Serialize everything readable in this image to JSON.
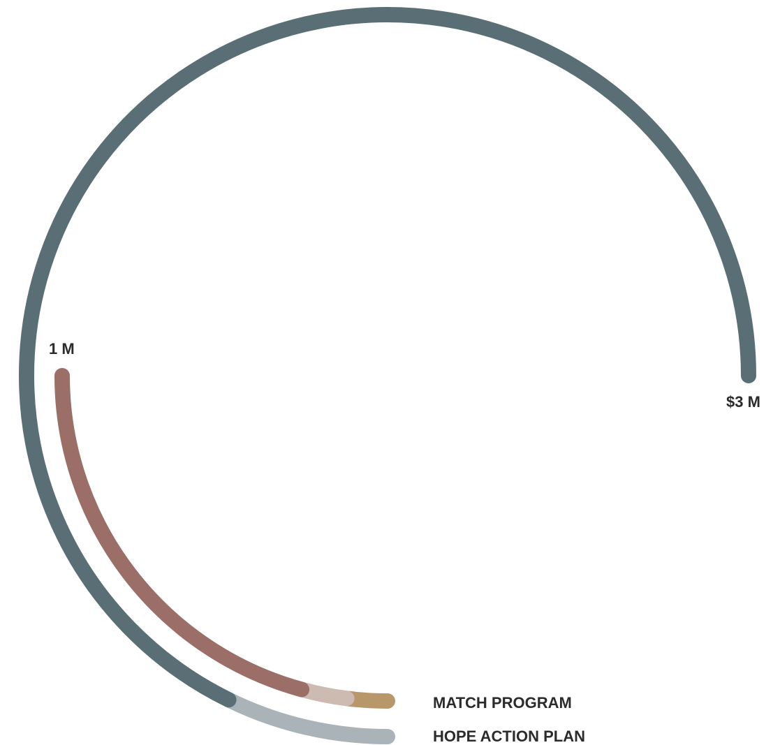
{
  "chart_data": {
    "type": "radial-bar",
    "unit": "$ M",
    "scale_max": 3,
    "scale_labels": {
      "mid": "1 M",
      "max": "$3 M"
    },
    "series": [
      {
        "name": "MATCH PROGRAM",
        "color": "#9b6e67",
        "segments": [
          {
            "value": 0.83,
            "color": "#9b6e67"
          },
          {
            "value": 0.09,
            "color": "#cdbab1"
          },
          {
            "value": 0.08,
            "color": "#b8976a"
          }
        ],
        "total": 1.0
      },
      {
        "name": "HOPE ACTION PLAN",
        "color": "#5a6e75",
        "segments": [
          {
            "value": 2.71,
            "color": "#5a6e75"
          },
          {
            "value": 0.29,
            "color": "#aab3b7"
          }
        ],
        "total": 3.0
      }
    ]
  }
}
